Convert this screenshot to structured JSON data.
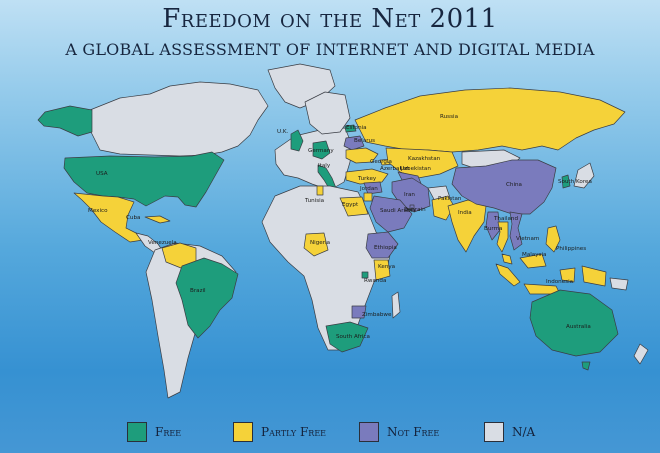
{
  "header": {
    "title": "Freedom on the Net 2011",
    "subtitle": "A GLOBAL ASSESSMENT OF INTERNET AND DIGITAL MEDIA"
  },
  "colors": {
    "free": "#1e9d7c",
    "partly_free": "#f5d239",
    "not_free": "#7a7bbd",
    "na": "#d9dde4",
    "ocean": "#3a93d3",
    "border": "#3a3d44"
  },
  "countries": {
    "usa": "USA",
    "mexico": "Mexico",
    "cuba": "Cuba",
    "venezuela": "Venezuela",
    "brazil": "Brazil",
    "uk": "U.K.",
    "germany": "Germany",
    "italy": "Italy",
    "estonia": "Estonia",
    "belarus": "Belarus",
    "georgia": "Georgia",
    "azerbaijan": "Azerbaijan",
    "turkey": "Turkey",
    "tunisia": "Tunisia",
    "jordan": "Jordan",
    "egypt": "Egypt",
    "iran": "Iran",
    "saudi_arabia": "Saudi Arabia",
    "bahrain": "Bahrain",
    "russia": "Russia",
    "kazakhstan": "Kazakhstan",
    "uzbekistan": "Uzbekistan",
    "pakistan": "Pakistan",
    "india": "India",
    "china": "China",
    "south_korea": "South Korea",
    "thailand": "Thailand",
    "burma": "Burma",
    "vietnam": "Vietnam",
    "malaysia": "Malaysia",
    "indonesia": "Indonesia",
    "philippines": "Philippines",
    "australia": "Australia",
    "nigeria": "Nigeria",
    "ethiopia": "Ethiopia",
    "kenya": "Kenya",
    "rwanda": "Rwanda",
    "zimbabwe": "Zimbabwe",
    "south_africa": "South Africa"
  },
  "legend": {
    "free": "Free",
    "partly_free": "Partly Free",
    "not_free": "Not Free",
    "na": "N/A"
  }
}
